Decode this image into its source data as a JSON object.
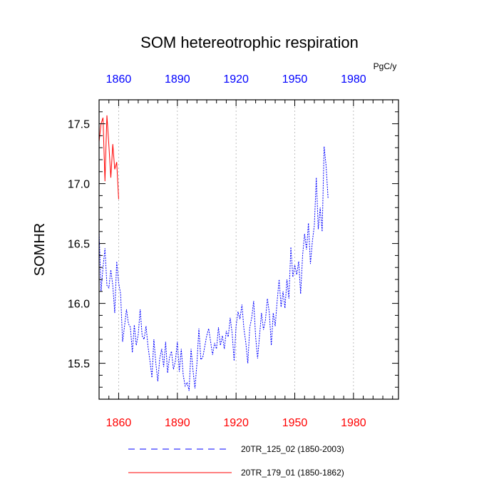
{
  "chart_data": {
    "type": "line",
    "title": "SOM hetereotrophic respiration",
    "ylabel": "SOMHR",
    "units": "PgC/y",
    "xlim": [
      1850,
      2003
    ],
    "ylim": [
      15.2,
      17.7
    ],
    "yticks": [
      15.5,
      16.0,
      16.5,
      17.0,
      17.5
    ],
    "ytick_labels": [
      "15.5",
      "16.0",
      "16.5",
      "17.0",
      "17.5"
    ],
    "xticks": [
      1860,
      1890,
      1920,
      1950,
      1980
    ],
    "xtick_labels_top": [
      "1860",
      "1890",
      "1920",
      "1950",
      "1980"
    ],
    "xtick_labels_bottom": [
      "1860",
      "1890",
      "1920",
      "1950",
      "1980"
    ],
    "grid": "vertical-dashed",
    "legend": "bottom",
    "colors": {
      "series1": "#0000ff",
      "series2": "#ff0000",
      "top_ticks": "#0000ff",
      "bottom_ticks": "#ff0000"
    },
    "series": [
      {
        "name": "20TR_125_02 (1850-2003)",
        "style": "dashed",
        "x_start": 1850,
        "values": [
          16.6,
          16.1,
          16.3,
          16.46,
          16.15,
          16.13,
          16.28,
          16.15,
          15.92,
          16.35,
          16.17,
          16.08,
          15.68,
          15.81,
          15.95,
          15.83,
          15.8,
          15.59,
          15.82,
          15.65,
          15.74,
          15.95,
          15.73,
          15.7,
          15.81,
          15.64,
          15.52,
          15.38,
          15.7,
          15.5,
          15.35,
          15.54,
          15.62,
          15.47,
          15.68,
          15.42,
          15.55,
          15.6,
          15.45,
          15.52,
          15.68,
          15.43,
          15.62,
          15.4,
          15.31,
          15.34,
          15.27,
          15.62,
          15.44,
          15.29,
          15.5,
          15.79,
          15.53,
          15.55,
          15.64,
          15.73,
          15.79,
          15.68,
          15.57,
          15.67,
          15.62,
          15.8,
          15.65,
          15.73,
          15.62,
          15.77,
          15.72,
          15.88,
          15.75,
          15.52,
          15.81,
          15.93,
          15.87,
          15.99,
          15.79,
          15.67,
          15.5,
          15.8,
          15.88,
          16.02,
          15.72,
          15.54,
          15.73,
          15.92,
          15.78,
          15.86,
          16.04,
          15.92,
          15.65,
          15.92,
          15.81,
          16.02,
          16.2,
          15.97,
          16.1,
          15.96,
          16.2,
          16.04,
          16.47,
          16.22,
          16.32,
          16.24,
          16.35,
          16.08,
          16.4,
          16.58,
          16.45,
          16.67,
          16.33,
          16.52,
          16.65,
          17.05,
          16.62,
          16.8,
          16.6,
          17.31,
          17.15,
          16.88
        ]
      },
      {
        "name": "20TR_179_01 (1850-1862)",
        "style": "solid",
        "x_start": 1850,
        "values": [
          17.35,
          17.5,
          17.55,
          17.02,
          17.57,
          17.32,
          17.05,
          17.33,
          17.12,
          17.18,
          16.87
        ]
      }
    ]
  }
}
